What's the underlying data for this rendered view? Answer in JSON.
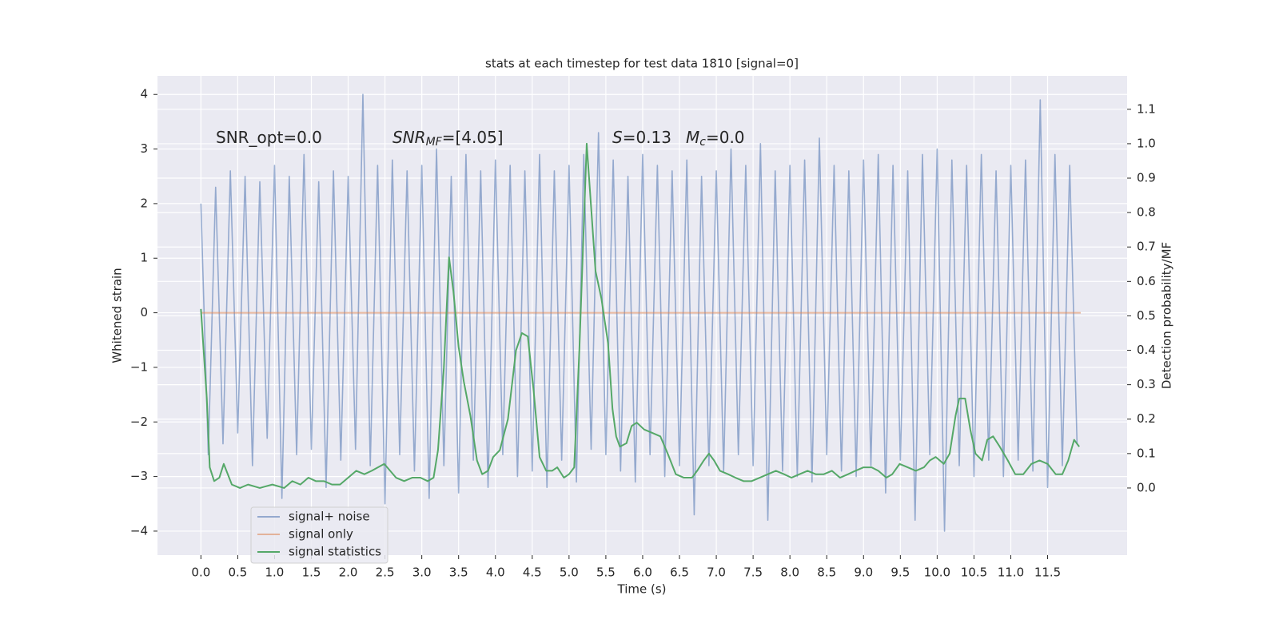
{
  "chart_data": {
    "type": "line",
    "title": "stats at each timestep for test data 1810 [signal=0]",
    "xlabel": "Time (s)",
    "ylabel": "Whitened strain",
    "y2label": "Detection probability/MF",
    "annotations": [
      {
        "main": "SNR_opt=0.0"
      },
      {
        "main": "SNR",
        "sub": "MF",
        "rest": "=[4.05]"
      },
      {
        "main": "S",
        "rest": "=0.13"
      },
      {
        "main": "M",
        "sub": "c",
        "rest": "=0.0"
      }
    ],
    "xlim": [
      -0.59,
      12.58
    ],
    "ylim": [
      -4.44,
      4.34
    ],
    "y2lim": [
      -0.195,
      1.197
    ],
    "xticks": [
      {
        "value": 0,
        "label": "0.0"
      },
      0.5,
      {
        "value": 1,
        "label": "1.0"
      },
      1.5,
      {
        "value": 2,
        "label": "2.0"
      },
      2.5,
      {
        "value": 3,
        "label": "3.0"
      },
      3.5,
      {
        "value": 4,
        "label": "4.0"
      },
      4.5,
      {
        "value": 5,
        "label": "5.0"
      },
      5.5,
      {
        "value": 6,
        "label": "6.0"
      },
      6.5,
      {
        "value": 7,
        "label": "7.0"
      },
      7.5,
      {
        "value": 8,
        "label": "8.0"
      },
      8.5,
      {
        "value": 9,
        "label": "9.0"
      },
      9.5,
      {
        "value": 10,
        "label": "10.0"
      },
      10.5,
      {
        "value": 11,
        "label": "11.0"
      },
      11.5
    ],
    "yticks": [
      {
        "value": -4,
        "label": "−4"
      },
      {
        "value": -3,
        "label": "−3"
      },
      {
        "value": -2,
        "label": "−2"
      },
      {
        "value": -1,
        "label": "−1"
      },
      0,
      1,
      2,
      3,
      4
    ],
    "y2ticks": [
      {
        "value": 0,
        "label": "0.0"
      },
      0.1,
      0.2,
      0.3,
      0.4,
      0.5,
      0.6,
      0.7,
      0.8,
      0.9,
      {
        "value": 1,
        "label": "1.0"
      },
      1.1
    ],
    "grid": true,
    "legend": "lower left",
    "series": [
      {
        "name": "signal+ noise",
        "color": "#4c72b0",
        "x": [
          0,
          0.1,
          0.2,
          0.3,
          0.4,
          0.5,
          0.6,
          0.7,
          0.8,
          0.9,
          1.0,
          1.1,
          1.2,
          1.3,
          1.4,
          1.5,
          1.6,
          1.7,
          1.8,
          1.9,
          2.0,
          2.1,
          2.2,
          2.3,
          2.4,
          2.5,
          2.6,
          2.7,
          2.8,
          2.9,
          3.0,
          3.1,
          3.2,
          3.3,
          3.4,
          3.5,
          3.6,
          3.7,
          3.8,
          3.9,
          4.0,
          4.1,
          4.2,
          4.3,
          4.4,
          4.5,
          4.6,
          4.7,
          4.8,
          4.9,
          5.0,
          5.1,
          5.2,
          5.3,
          5.4,
          5.5,
          5.6,
          5.7,
          5.8,
          5.9,
          6.0,
          6.1,
          6.2,
          6.3,
          6.4,
          6.5,
          6.6,
          6.7,
          6.8,
          6.9,
          7.0,
          7.1,
          7.2,
          7.3,
          7.4,
          7.5,
          7.6,
          7.7,
          7.8,
          7.9,
          8.0,
          8.1,
          8.2,
          8.3,
          8.4,
          8.5,
          8.6,
          8.7,
          8.8,
          8.9,
          9.0,
          9.1,
          9.2,
          9.3,
          9.4,
          9.5,
          9.6,
          9.7,
          9.8,
          9.9,
          10.0,
          10.1,
          10.2,
          10.3,
          10.4,
          10.5,
          10.6,
          10.7,
          10.8,
          10.9,
          11.0,
          11.1,
          11.2,
          11.3,
          11.4,
          11.5,
          11.6,
          11.7,
          11.8,
          11.9
        ],
        "values": [
          2.0,
          -2.6,
          2.3,
          -2.4,
          2.6,
          -2.2,
          2.5,
          -2.8,
          2.4,
          -2.3,
          2.7,
          -3.4,
          2.5,
          -2.6,
          2.9,
          -2.5,
          2.4,
          -3.2,
          2.6,
          -2.7,
          2.5,
          -2.5,
          4.0,
          -2.8,
          2.7,
          -3.5,
          2.8,
          -2.6,
          2.6,
          -2.9,
          2.7,
          -3.4,
          3.0,
          -2.8,
          2.5,
          -3.3,
          2.9,
          -2.7,
          2.6,
          -3.2,
          2.8,
          -2.6,
          2.7,
          -3.0,
          2.6,
          -2.9,
          2.9,
          -3.2,
          2.6,
          -2.7,
          2.7,
          -3.1,
          2.9,
          -2.5,
          3.3,
          -2.6,
          2.8,
          -2.9,
          2.5,
          -3.1,
          2.9,
          -2.6,
          2.7,
          -3.0,
          2.6,
          -2.8,
          2.8,
          -3.7,
          2.5,
          -2.8,
          2.6,
          -2.9,
          3.0,
          -2.6,
          2.7,
          -2.8,
          3.1,
          -3.8,
          2.6,
          -2.9,
          2.7,
          -3.0,
          2.8,
          -3.1,
          3.2,
          -2.6,
          2.7,
          -2.9,
          2.6,
          -3.0,
          2.8,
          -2.8,
          2.9,
          -3.3,
          2.7,
          -2.7,
          2.6,
          -3.8,
          2.9,
          -2.6,
          3.0,
          -4.0,
          2.8,
          -2.8,
          2.7,
          -3.0,
          2.9,
          -2.7,
          2.6,
          -3.0,
          2.7,
          -2.7,
          2.8,
          -2.9,
          3.9,
          -3.2,
          2.9,
          -2.8,
          2.7,
          -2.4
        ]
      },
      {
        "name": "signal only",
        "color": "#dd8452",
        "x": [
          0,
          11.95
        ],
        "values": [
          0,
          0
        ]
      },
      {
        "name": "signal statistics",
        "color": "#55a868",
        "axis": "y2",
        "x": [
          0,
          0.08,
          0.12,
          0.18,
          0.25,
          0.31,
          0.42,
          0.53,
          0.64,
          0.8,
          0.97,
          1.13,
          1.24,
          1.35,
          1.46,
          1.56,
          1.67,
          1.78,
          1.89,
          2.0,
          2.11,
          2.22,
          2.32,
          2.49,
          2.65,
          2.76,
          2.87,
          2.98,
          3.08,
          3.16,
          3.22,
          3.3,
          3.37,
          3.43,
          3.5,
          3.57,
          3.66,
          3.75,
          3.82,
          3.9,
          3.97,
          4.06,
          4.17,
          4.28,
          4.36,
          4.44,
          4.52,
          4.6,
          4.69,
          4.77,
          4.84,
          4.93,
          5.0,
          5.07,
          5.14,
          5.24,
          5.36,
          5.44,
          5.53,
          5.59,
          5.64,
          5.69,
          5.78,
          5.85,
          5.92,
          6.02,
          6.13,
          6.24,
          6.34,
          6.45,
          6.56,
          6.67,
          6.74,
          6.83,
          6.9,
          6.97,
          7.05,
          7.16,
          7.26,
          7.37,
          7.48,
          7.59,
          7.7,
          7.81,
          7.92,
          8.02,
          8.13,
          8.24,
          8.35,
          8.46,
          8.57,
          8.68,
          8.79,
          8.89,
          9.0,
          9.11,
          9.2,
          9.31,
          9.39,
          9.49,
          9.6,
          9.71,
          9.82,
          9.9,
          9.98,
          10.09,
          10.17,
          10.25,
          10.3,
          10.38,
          10.45,
          10.52,
          10.61,
          10.68,
          10.76,
          10.85,
          10.96,
          11.06,
          11.17,
          11.28,
          11.39,
          11.5,
          11.61,
          11.7,
          11.78,
          11.86,
          11.93
        ],
        "values": [
          0.52,
          0.26,
          0.06,
          0.02,
          0.03,
          0.07,
          0.01,
          0.0,
          0.01,
          0.0,
          0.01,
          0.0,
          0.02,
          0.01,
          0.03,
          0.02,
          0.02,
          0.01,
          0.01,
          0.03,
          0.05,
          0.04,
          0.05,
          0.07,
          0.03,
          0.02,
          0.03,
          0.03,
          0.02,
          0.03,
          0.11,
          0.35,
          0.67,
          0.57,
          0.41,
          0.31,
          0.21,
          0.08,
          0.04,
          0.05,
          0.09,
          0.11,
          0.2,
          0.4,
          0.45,
          0.44,
          0.28,
          0.09,
          0.05,
          0.05,
          0.06,
          0.03,
          0.04,
          0.06,
          0.4,
          1.0,
          0.63,
          0.55,
          0.42,
          0.23,
          0.15,
          0.12,
          0.13,
          0.18,
          0.19,
          0.17,
          0.16,
          0.15,
          0.1,
          0.04,
          0.03,
          0.03,
          0.05,
          0.08,
          0.1,
          0.08,
          0.05,
          0.04,
          0.03,
          0.02,
          0.02,
          0.03,
          0.04,
          0.05,
          0.04,
          0.03,
          0.04,
          0.05,
          0.04,
          0.04,
          0.05,
          0.03,
          0.04,
          0.05,
          0.06,
          0.06,
          0.05,
          0.03,
          0.04,
          0.07,
          0.06,
          0.05,
          0.06,
          0.08,
          0.09,
          0.07,
          0.1,
          0.21,
          0.26,
          0.26,
          0.17,
          0.1,
          0.08,
          0.14,
          0.15,
          0.12,
          0.08,
          0.04,
          0.04,
          0.07,
          0.08,
          0.07,
          0.04,
          0.04,
          0.08,
          0.14,
          0.12
        ]
      }
    ]
  }
}
